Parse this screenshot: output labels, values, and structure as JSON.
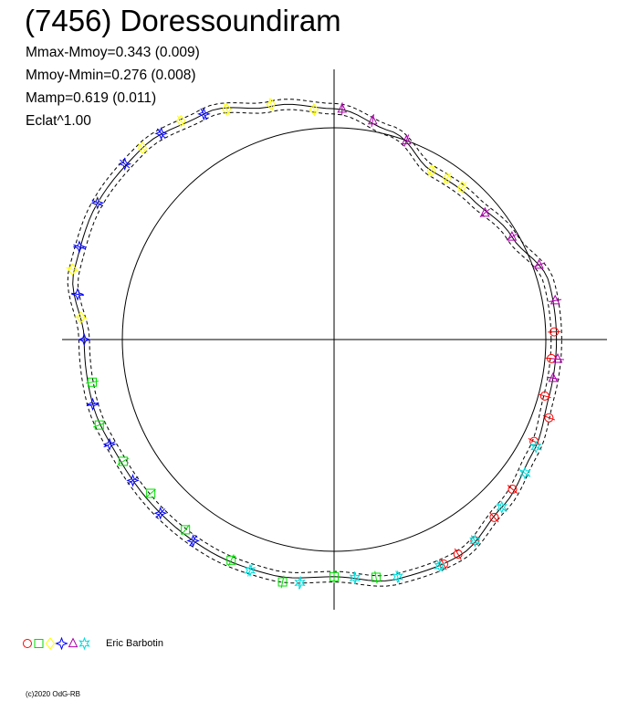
{
  "title": "(7456) Doressoundiram",
  "stats": {
    "mmax_mmoy": "Mmax-Mmoy=0.343 (0.009)",
    "mmoy_mmin": "Mmoy-Mmin=0.276 (0.008)",
    "mamp": "Mamp=0.619 (0.011)",
    "eclat": "Eclat^1.00"
  },
  "legend": {
    "author": "Eric Barbotin",
    "symbols": [
      {
        "shape": "circle",
        "color": "#ff0000"
      },
      {
        "shape": "square",
        "color": "#00dd00"
      },
      {
        "shape": "diamond",
        "color": "#ffff00"
      },
      {
        "shape": "star4",
        "color": "#0000ff"
      },
      {
        "shape": "triangle",
        "color": "#aa00aa"
      },
      {
        "shape": "star6",
        "color": "#00dddd"
      }
    ]
  },
  "copyright": "(c)2020 OdG-RB",
  "chart_data": {
    "type": "line",
    "projection": "polar",
    "title": "(7456) Doressoundiram",
    "reference_circle_radius": 1.0,
    "curve_color": "#000000",
    "model_curve": {
      "angle_deg": [
        0,
        15,
        30,
        45,
        60,
        75,
        90,
        105,
        120,
        135,
        150,
        165,
        180,
        195,
        210,
        225,
        240,
        255,
        270,
        285,
        300,
        315,
        330,
        345,
        360
      ],
      "radius": [
        1.05,
        1.05,
        0.97,
        0.93,
        0.92,
        1.02,
        1.09,
        1.14,
        1.23,
        1.28,
        1.29,
        1.27,
        1.18,
        1.18,
        1.16,
        1.16,
        1.16,
        1.15,
        1.12,
        1.17,
        1.18,
        1.12,
        1.08,
        1.05,
        1.05
      ]
    },
    "series": [
      {
        "name": "Eric Barbotin",
        "symbol": "circle",
        "color": "#ff0000",
        "angle_deg": [
          345,
          333,
          320,
          305,
          296,
          2,
          355,
          340,
          312,
          300
        ],
        "radius": [
          1.03,
          1.06,
          1.1,
          1.16,
          1.18,
          1.04,
          1.03,
          1.08,
          1.13,
          1.17
        ]
      },
      {
        "name": "Eric Barbotin",
        "symbol": "square",
        "color": "#00dd00",
        "angle_deg": [
          190,
          200,
          210,
          220,
          232,
          245,
          258,
          270,
          280
        ],
        "radius": [
          1.16,
          1.18,
          1.15,
          1.13,
          1.14,
          1.15,
          1.17,
          1.12,
          1.14
        ]
      },
      {
        "name": "Eric Barbotin",
        "symbol": "diamond",
        "color": "#ffff00",
        "angle_deg": [
          95,
          105,
          115,
          125,
          135,
          150,
          165,
          175,
          60,
          55,
          50
        ],
        "radius": [
          1.09,
          1.15,
          1.2,
          1.26,
          1.28,
          1.29,
          1.28,
          1.2,
          0.92,
          0.93,
          0.94
        ]
      },
      {
        "name": "Eric Barbotin",
        "symbol": "star4",
        "color": "#0000ff",
        "angle_deg": [
          120,
          130,
          140,
          150,
          160,
          170,
          180,
          195,
          205,
          215,
          225,
          235
        ],
        "radius": [
          1.23,
          1.27,
          1.29,
          1.29,
          1.28,
          1.23,
          1.18,
          1.18,
          1.17,
          1.16,
          1.16,
          1.16
        ]
      },
      {
        "name": "Eric Barbotin",
        "symbol": "triangle",
        "color": "#aa00aa",
        "angle_deg": [
          70,
          80,
          88,
          40,
          30,
          20,
          10,
          355,
          350
        ],
        "radius": [
          1.0,
          1.05,
          1.09,
          0.93,
          0.97,
          1.03,
          1.06,
          1.06,
          1.05
        ]
      },
      {
        "name": "Eric Barbotin",
        "symbol": "star6",
        "color": "#00dddd",
        "angle_deg": [
          250,
          262,
          275,
          285,
          295,
          305,
          315,
          325,
          332
        ],
        "radius": [
          1.16,
          1.16,
          1.13,
          1.16,
          1.18,
          1.16,
          1.12,
          1.1,
          1.08
        ]
      }
    ]
  }
}
